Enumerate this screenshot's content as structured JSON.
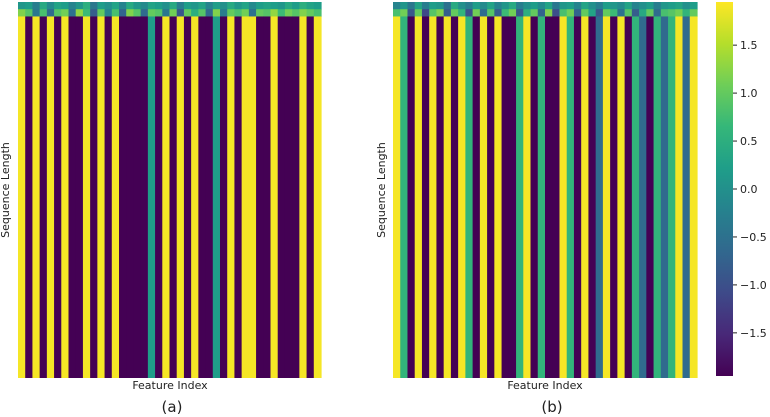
{
  "chart_data": [
    {
      "type": "heatmap",
      "caption": "(a)",
      "xlabel": "Feature Index",
      "ylabel": "Sequence Length",
      "top_rows": [
        {
          "rows": 1,
          "columns": [
            0.1,
            0.2,
            -0.3,
            0.4,
            -0.1,
            0.3,
            0.2,
            -0.2,
            0.1,
            0.5,
            -0.4,
            0.2,
            0.0,
            0.3,
            -0.2,
            0.4,
            0.1,
            -0.1,
            0.3,
            0.2,
            0.0,
            0.4,
            -0.3,
            0.2,
            0.1,
            0.3,
            -0.2,
            0.2,
            0.0,
            0.4,
            0.1,
            0.3,
            -0.1,
            0.2,
            0.3,
            0.2,
            0.1,
            0.4,
            0.2,
            0.5,
            0.3,
            0.2
          ]
        },
        {
          "rows": 1,
          "columns": [
            1.2,
            0.9,
            -0.4,
            0.8,
            -0.6,
            0.9,
            1.1,
            -0.5,
            1.3,
            0.7,
            -0.8,
            1.0,
            -0.2,
            0.8,
            -0.7,
            1.2,
            0.9,
            -0.6,
            1.0,
            0.9,
            -0.4,
            1.1,
            -0.9,
            1.0,
            0.5,
            0.9,
            -0.6,
            1.2,
            -0.3,
            1.0,
            0.8,
            1.1,
            -0.5,
            1.0,
            0.9,
            1.3,
            0.7,
            1.1,
            0.9,
            1.2,
            1.0,
            0.8
          ]
        }
      ],
      "columns": [
        1.9,
        -1.95,
        1.9,
        -1.95,
        1.9,
        -1.95,
        1.9,
        -1.95,
        -1.95,
        1.9,
        -1.95,
        1.9,
        -1.95,
        1.9,
        -1.95,
        -1.95,
        -1.95,
        -1.95,
        0.2,
        -1.95,
        1.9,
        -1.95,
        1.9,
        -1.95,
        1.9,
        -1.95,
        -1.95,
        0.2,
        -1.95,
        1.9,
        -1.95,
        1.9,
        1.9,
        -1.95,
        -1.95,
        1.9,
        -1.95,
        -1.95,
        -1.95,
        1.9,
        -1.95,
        1.9
      ],
      "rows": 50
    },
    {
      "type": "heatmap",
      "caption": "(b)",
      "xlabel": "Feature Index",
      "ylabel": "Sequence Length",
      "top_rows": [
        {
          "rows": 1,
          "columns": [
            -0.2,
            0.1,
            -0.4,
            0.3,
            -0.3,
            0.2,
            0.1,
            -0.5,
            0.4,
            0.0,
            -0.3,
            0.2,
            -0.1,
            0.3,
            -0.2,
            0.1,
            0.4,
            -0.3,
            0.0,
            0.2,
            -0.1,
            0.3,
            -0.4,
            0.1,
            0.2,
            -0.2,
            0.3,
            0.0,
            -0.3,
            0.2,
            0.1,
            -0.1,
            0.3,
            -0.2,
            0.0,
            0.2,
            -0.3,
            0.1,
            0.2,
            0.3,
            0.0,
            0.2
          ]
        },
        {
          "rows": 1,
          "columns": [
            0.8,
            1.1,
            -0.9,
            1.0,
            -1.1,
            0.9,
            1.2,
            -0.8,
            1.0,
            0.6,
            -1.0,
            1.1,
            -0.6,
            0.9,
            -0.8,
            0.7,
            1.1,
            -0.9,
            0.5,
            1.0,
            -0.7,
            1.2,
            -1.0,
            0.8,
            1.1,
            -0.7,
            1.0,
            0.3,
            -0.9,
            1.0,
            0.7,
            -0.5,
            0.9,
            -0.8,
            0.4,
            1.0,
            -0.6,
            0.8,
            0.9,
            1.1,
            0.6,
            1.0
          ]
        }
      ],
      "columns": [
        1.9,
        0.6,
        -1.95,
        1.9,
        -1.95,
        1.9,
        -1.95,
        1.9,
        -1.95,
        1.9,
        0.6,
        -1.95,
        1.9,
        -1.95,
        1.9,
        -1.95,
        -1.95,
        0.6,
        1.9,
        -1.95,
        0.6,
        -1.95,
        -1.95,
        1.9,
        0.6,
        -1.95,
        1.9,
        -1.95,
        -0.6,
        1.9,
        -1.95,
        1.9,
        -1.95,
        0.6,
        -0.6,
        -1.95,
        0.6,
        -0.6,
        0.6,
        1.9,
        -0.6,
        1.9
      ],
      "rows": 50
    }
  ],
  "colorbar": {
    "vmin": -1.95,
    "vmax": 1.95,
    "ticks": [
      "1.5",
      "1.0",
      "0.5",
      "0.0",
      "−0.5",
      "−1.0",
      "−1.5"
    ],
    "tick_values": [
      1.5,
      1.0,
      0.5,
      0.0,
      -0.5,
      -1.0,
      -1.5
    ],
    "colormap": "viridis"
  }
}
